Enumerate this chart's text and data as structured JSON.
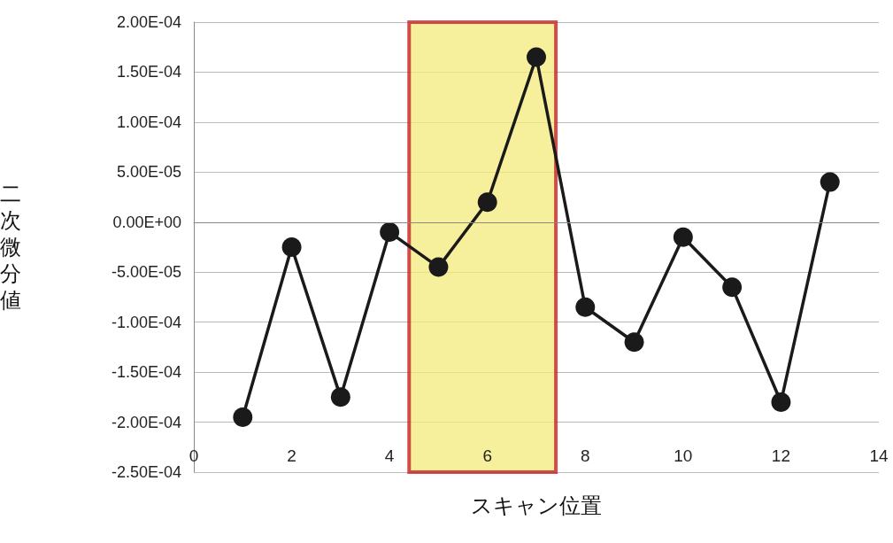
{
  "chart_data": {
    "type": "line",
    "xlabel": "スキャン位置",
    "ylabel": "二次微分値",
    "x": [
      1,
      2,
      3,
      4,
      5,
      6,
      7,
      8,
      9,
      10,
      11,
      12,
      13
    ],
    "series": [
      {
        "color": "#1a1a1a",
        "values": [
          -0.000195,
          -2.5e-05,
          -0.000175,
          -1e-05,
          -4.5e-05,
          2e-05,
          0.000165,
          -8.5e-05,
          -0.00012,
          -1.5e-05,
          -6.5e-05,
          -0.00018,
          4e-05
        ]
      }
    ],
    "xlim": [
      0,
      14
    ],
    "xticks": [
      0,
      2,
      4,
      6,
      8,
      10,
      12,
      14
    ],
    "ylim": [
      -0.00025,
      0.0002
    ],
    "yticks": [
      {
        "value": -0.00025,
        "label": "-2.50E-04"
      },
      {
        "value": -0.0002,
        "label": "-2.00E-04"
      },
      {
        "value": -0.00015,
        "label": "-1.50E-04"
      },
      {
        "value": -0.0001,
        "label": "-1.00E-04"
      },
      {
        "value": -5e-05,
        "label": "-5.00E-05"
      },
      {
        "value": 0,
        "label": "0.00E+00"
      },
      {
        "value": 5e-05,
        "label": "5.00E-05"
      },
      {
        "value": 0.0001,
        "label": "1.00E-04"
      },
      {
        "value": 0.00015,
        "label": "1.50E-04"
      },
      {
        "value": 0.0002,
        "label": "2.00E-04"
      }
    ],
    "bands": [
      {
        "axis": "x",
        "from": 4.4,
        "to": 7.4,
        "color": "#f3ea7a"
      }
    ],
    "grid": "y",
    "marker": "circle",
    "line_style": "solid"
  }
}
